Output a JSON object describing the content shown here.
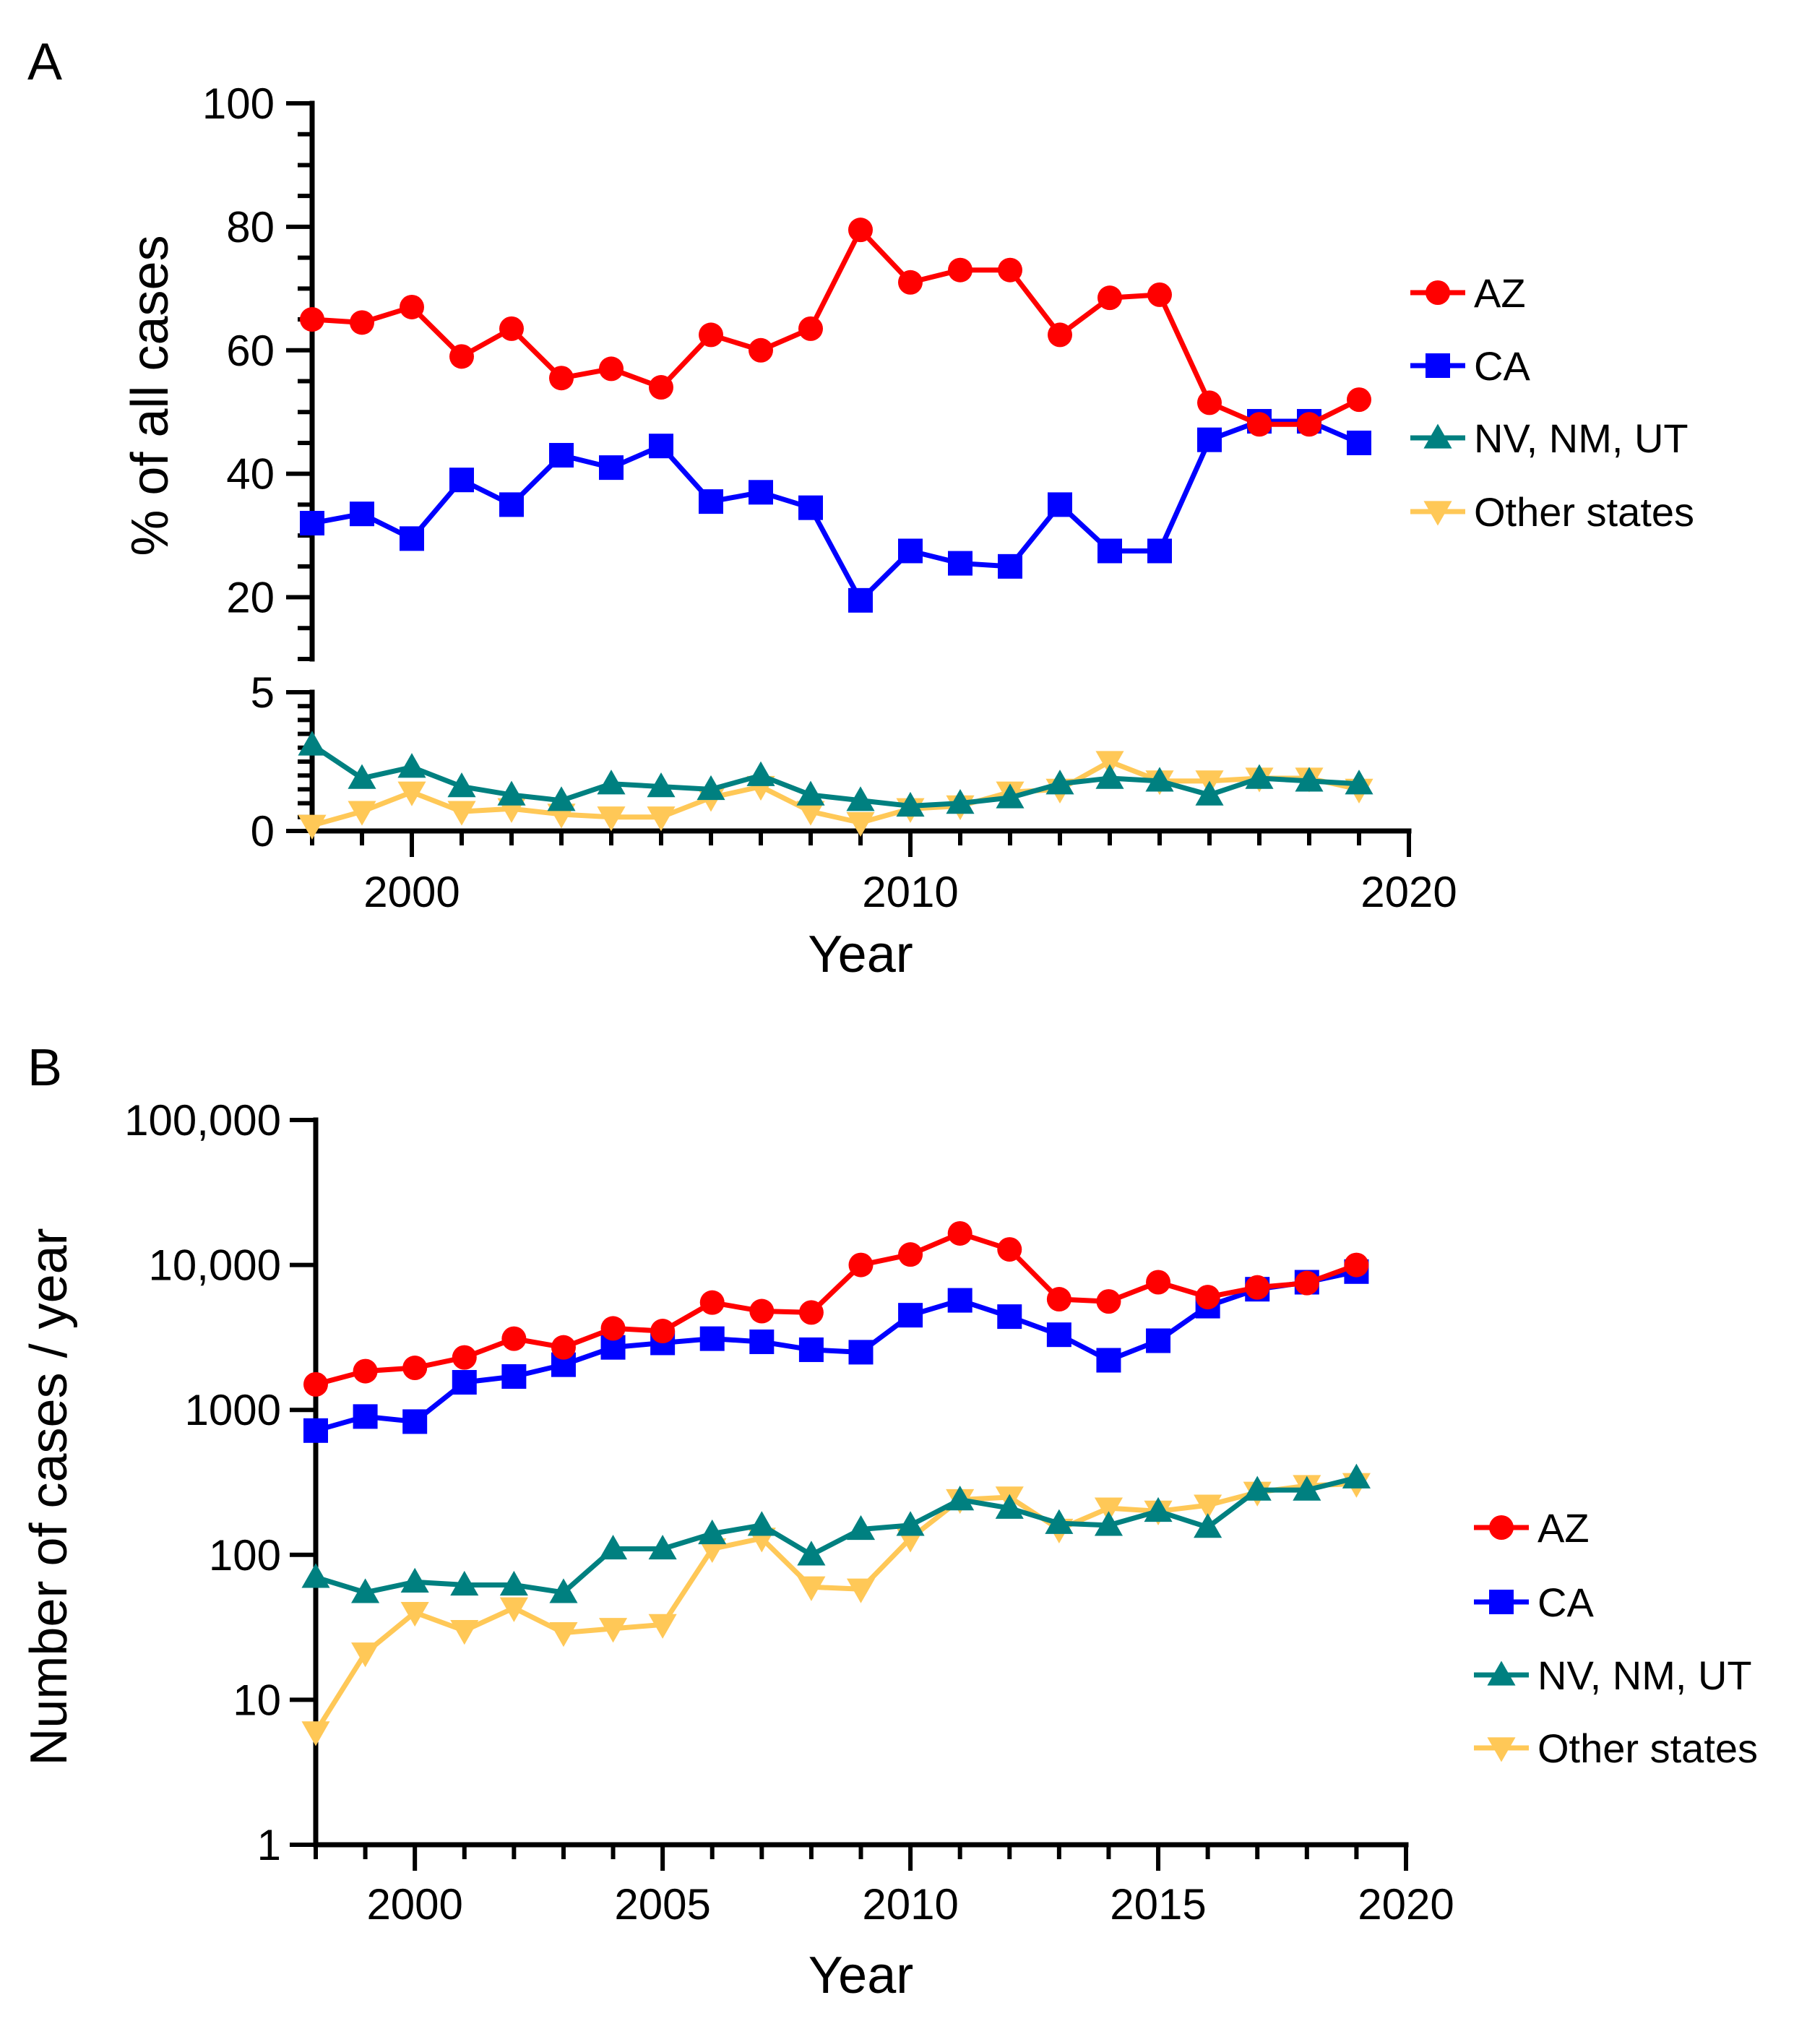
{
  "chart_data": [
    {
      "panel": "A",
      "type": "line",
      "xlabel": "Year",
      "ylabel": "% of all cases",
      "xlim": [
        1998,
        2020
      ],
      "xticks": [
        2000,
        2010,
        2020
      ],
      "y_axis_break": {
        "upper_range": [
          10,
          100
        ],
        "lower_range": [
          0,
          5
        ]
      },
      "yticks_upper": [
        20,
        40,
        60,
        80,
        100
      ],
      "yticks_lower": [
        0,
        5
      ],
      "x": [
        1998,
        1999,
        2000,
        2001,
        2002,
        2003,
        2004,
        2005,
        2006,
        2007,
        2008,
        2009,
        2010,
        2011,
        2012,
        2013,
        2014,
        2015,
        2016,
        2017,
        2018,
        2019
      ],
      "series": [
        {
          "name": "AZ",
          "color": "#ff0000",
          "marker": "circle",
          "values": [
            65,
            64.5,
            67,
            59,
            63.5,
            55.5,
            57,
            54,
            62.5,
            60,
            63.5,
            79.5,
            71,
            73,
            73,
            62.5,
            68.5,
            69,
            51.5,
            48,
            48,
            52
          ]
        },
        {
          "name": "CA",
          "color": "#0000ff",
          "marker": "square",
          "values": [
            32,
            33.5,
            29.5,
            39,
            35,
            43,
            41,
            44.5,
            35.5,
            37,
            34.5,
            19.5,
            27.5,
            25.5,
            25,
            35,
            27.5,
            27.5,
            45.5,
            48.5,
            48.5,
            45
          ]
        },
        {
          "name": "NV, NM, UT",
          "color": "#008080",
          "marker": "triangle-up",
          "values": [
            3.1,
            1.9,
            2.3,
            1.6,
            1.3,
            1.1,
            1.7,
            1.6,
            1.5,
            2.0,
            1.3,
            1.1,
            0.9,
            1.0,
            1.2,
            1.7,
            1.9,
            1.8,
            1.3,
            1.9,
            1.8,
            1.7
          ]
        },
        {
          "name": "Other states",
          "color": "#ffc857",
          "marker": "triangle-down",
          "values": [
            0.2,
            0.7,
            1.4,
            0.7,
            0.8,
            0.6,
            0.5,
            0.5,
            1.2,
            1.6,
            0.7,
            0.3,
            0.8,
            0.9,
            1.4,
            1.5,
            2.5,
            1.8,
            1.8,
            1.9,
            1.9,
            1.5
          ]
        }
      ]
    },
    {
      "panel": "B",
      "type": "line",
      "yscale": "log",
      "xlabel": "Year",
      "ylabel": "Number of cases / year",
      "xlim": [
        1998,
        2020
      ],
      "ylim": [
        1,
        100000
      ],
      "xticks": [
        2000,
        2005,
        2010,
        2015,
        2020
      ],
      "yticks": [
        1,
        10,
        100,
        1000,
        10000,
        100000
      ],
      "ytick_labels": [
        "1",
        "10",
        "100",
        "1000",
        "10,000",
        "100,000"
      ],
      "x": [
        1998,
        1999,
        2000,
        2001,
        2002,
        2003,
        2004,
        2005,
        2006,
        2007,
        2008,
        2009,
        2010,
        2011,
        2012,
        2013,
        2014,
        2015,
        2016,
        2017,
        2018,
        2019
      ],
      "series": [
        {
          "name": "AZ",
          "color": "#ff0000",
          "marker": "circle",
          "values": [
            1500,
            1850,
            1950,
            2300,
            3100,
            2700,
            3650,
            3500,
            5500,
            4800,
            4700,
            10000,
            11800,
            16500,
            12800,
            5800,
            5600,
            7600,
            6000,
            7000,
            7500,
            10000
          ]
        },
        {
          "name": "CA",
          "color": "#0000ff",
          "marker": "square",
          "values": [
            720,
            900,
            830,
            1550,
            1700,
            2050,
            2700,
            2900,
            3100,
            2950,
            2600,
            2500,
            4500,
            5700,
            4400,
            3300,
            2200,
            3000,
            5200,
            6800,
            7600,
            9000
          ]
        },
        {
          "name": "NV, NM, UT",
          "color": "#008080",
          "marker": "triangle-up",
          "values": [
            70,
            55,
            65,
            62,
            62,
            55,
            110,
            110,
            140,
            160,
            100,
            150,
            160,
            240,
            210,
            165,
            160,
            200,
            155,
            280,
            280,
            340
          ]
        },
        {
          "name": "Other states",
          "color": "#ffc857",
          "marker": "triangle-down",
          "values": [
            6,
            21,
            40,
            30,
            43,
            29,
            31,
            33,
            110,
            130,
            60,
            58,
            130,
            240,
            250,
            150,
            210,
            200,
            220,
            270,
            300,
            310
          ]
        }
      ]
    }
  ]
}
